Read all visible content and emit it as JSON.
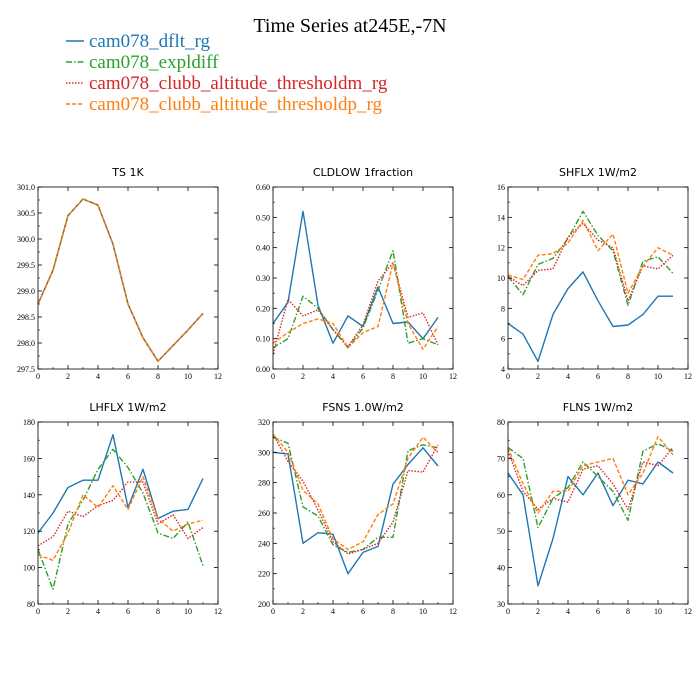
{
  "figure": {
    "title": "Time Series at245E,-7N",
    "legend": [
      {
        "label": "cam078_dflt_rg",
        "color": "#1f77b4",
        "dash": "solid"
      },
      {
        "label": "cam078_expldiff",
        "color": "#2ca02c",
        "dash": "dashdot"
      },
      {
        "label": "cam078_clubb_altitude_thresholdm_rg",
        "color": "#d62728",
        "dash": "dot"
      },
      {
        "label": "cam078_clubb_altitude_thresholdp_rg",
        "color": "#ff7f0e",
        "dash": "dash"
      }
    ]
  },
  "chart_data": [
    {
      "type": "line",
      "title": "TS   1K",
      "x": [
        0,
        1,
        2,
        3,
        4,
        5,
        6,
        7,
        8,
        9,
        10,
        11
      ],
      "xlim": [
        0,
        12
      ],
      "xticks": [
        0,
        2,
        4,
        6,
        8,
        10,
        12
      ],
      "ylim": [
        297.5,
        301.0
      ],
      "yticks": [
        297.5,
        298.0,
        298.5,
        299.0,
        299.5,
        300.0,
        300.5,
        301.0
      ],
      "ytick_labels": [
        "297.5",
        "298.0",
        "298.5",
        "299.0",
        "299.5",
        "300.0",
        "300.5",
        "301.0"
      ],
      "series": [
        {
          "name": "cam078_dflt_rg",
          "values": [
            298.75,
            299.4,
            300.45,
            300.77,
            300.65,
            299.9,
            298.75,
            298.1,
            297.65,
            297.95,
            298.25,
            298.57
          ]
        },
        {
          "name": "cam078_expldiff",
          "values": [
            298.75,
            299.4,
            300.45,
            300.77,
            300.65,
            299.9,
            298.75,
            298.1,
            297.65,
            297.95,
            298.25,
            298.57
          ]
        },
        {
          "name": "cam078_clubb_altitude_thresholdm_rg",
          "values": [
            298.75,
            299.4,
            300.45,
            300.77,
            300.65,
            299.9,
            298.75,
            298.1,
            297.65,
            297.95,
            298.25,
            298.57
          ]
        },
        {
          "name": "cam078_clubb_altitude_thresholdp_rg",
          "values": [
            298.75,
            299.4,
            300.45,
            300.77,
            300.65,
            299.9,
            298.75,
            298.1,
            297.65,
            297.95,
            298.25,
            298.57
          ]
        }
      ]
    },
    {
      "type": "line",
      "title": "CLDLOW   1fraction",
      "x": [
        0,
        1,
        2,
        3,
        4,
        5,
        6,
        7,
        8,
        9,
        10,
        11
      ],
      "xlim": [
        0,
        12
      ],
      "xticks": [
        0,
        2,
        4,
        6,
        8,
        10,
        12
      ],
      "ylim": [
        0.0,
        0.6
      ],
      "yticks": [
        0.0,
        0.1,
        0.2,
        0.3,
        0.4,
        0.5,
        0.6
      ],
      "ytick_labels": [
        "0.00",
        "0.10",
        "0.20",
        "0.30",
        "0.40",
        "0.50",
        "0.60"
      ],
      "series": [
        {
          "name": "cam078_dflt_rg",
          "values": [
            0.15,
            0.22,
            0.52,
            0.21,
            0.085,
            0.175,
            0.14,
            0.27,
            0.15,
            0.155,
            0.1,
            0.17
          ]
        },
        {
          "name": "cam078_expldiff",
          "values": [
            0.07,
            0.1,
            0.24,
            0.2,
            0.13,
            0.07,
            0.135,
            0.26,
            0.39,
            0.085,
            0.1,
            0.08
          ]
        },
        {
          "name": "cam078_clubb_altitude_thresholdm_rg",
          "values": [
            0.05,
            0.23,
            0.175,
            0.195,
            0.13,
            0.075,
            0.145,
            0.29,
            0.35,
            0.17,
            0.185,
            0.08
          ]
        },
        {
          "name": "cam078_clubb_altitude_thresholdp_rg",
          "values": [
            0.085,
            0.12,
            0.15,
            0.165,
            0.15,
            0.07,
            0.12,
            0.14,
            0.35,
            0.15,
            0.065,
            0.14
          ]
        }
      ]
    },
    {
      "type": "line",
      "title": "SHFLX   1W/m2",
      "x": [
        0,
        1,
        2,
        3,
        4,
        5,
        6,
        7,
        8,
        9,
        10,
        11
      ],
      "xlim": [
        0,
        12
      ],
      "xticks": [
        0,
        2,
        4,
        6,
        8,
        10,
        12
      ],
      "ylim": [
        4,
        16
      ],
      "yticks": [
        4,
        6,
        8,
        10,
        12,
        14,
        16
      ],
      "ytick_labels": [
        "4",
        "6",
        "8",
        "10",
        "12",
        "14",
        "16"
      ],
      "series": [
        {
          "name": "cam078_dflt_rg",
          "values": [
            7.0,
            6.3,
            4.5,
            7.6,
            9.3,
            10.4,
            8.5,
            6.8,
            6.9,
            7.6,
            8.8,
            8.8
          ]
        },
        {
          "name": "cam078_expldiff",
          "values": [
            10.1,
            8.9,
            10.9,
            11.3,
            12.6,
            14.4,
            12.8,
            11.8,
            8.2,
            11.1,
            11.4,
            10.3
          ]
        },
        {
          "name": "cam078_clubb_altitude_thresholdm_rg",
          "values": [
            10.1,
            9.5,
            10.5,
            10.6,
            12.7,
            13.6,
            12.5,
            12.0,
            8.5,
            10.8,
            10.6,
            11.5
          ]
        },
        {
          "name": "cam078_clubb_altitude_thresholdp_rg",
          "values": [
            10.2,
            9.9,
            11.5,
            11.6,
            12.3,
            13.8,
            11.8,
            12.9,
            9.0,
            10.8,
            12.0,
            11.5
          ]
        }
      ]
    },
    {
      "type": "line",
      "title": "LHFLX   1W/m2",
      "x": [
        0,
        1,
        2,
        3,
        4,
        5,
        6,
        7,
        8,
        9,
        10,
        11
      ],
      "xlim": [
        0,
        12
      ],
      "xticks": [
        0,
        2,
        4,
        6,
        8,
        10,
        12
      ],
      "ylim": [
        80,
        180
      ],
      "yticks": [
        80,
        100,
        120,
        140,
        160,
        180
      ],
      "ytick_labels": [
        "80",
        "100",
        "120",
        "140",
        "160",
        "180"
      ],
      "series": [
        {
          "name": "cam078_dflt_rg",
          "values": [
            119,
            130,
            144,
            148,
            148,
            173,
            133,
            154,
            127,
            131,
            132,
            149
          ]
        },
        {
          "name": "cam078_expldiff",
          "values": [
            110,
            88,
            124,
            137,
            154,
            165,
            155,
            141,
            119,
            116,
            125,
            101
          ]
        },
        {
          "name": "cam078_clubb_altitude_thresholdm_rg",
          "values": [
            112,
            117,
            131,
            128,
            134,
            137,
            147,
            147,
            124,
            129,
            116,
            122
          ]
        },
        {
          "name": "cam078_clubb_altitude_thresholdp_rg",
          "values": [
            107,
            104,
            119,
            140,
            133,
            145,
            132,
            150,
            127,
            120,
            124,
            126
          ]
        }
      ]
    },
    {
      "type": "line",
      "title": "FSNS   1.0W/m2",
      "x": [
        0,
        1,
        2,
        3,
        4,
        5,
        6,
        7,
        8,
        9,
        10,
        11
      ],
      "xlim": [
        0,
        12
      ],
      "xticks": [
        0,
        2,
        4,
        6,
        8,
        10,
        12
      ],
      "ylim": [
        200,
        320
      ],
      "yticks": [
        200,
        220,
        240,
        260,
        280,
        300,
        320
      ],
      "ytick_labels": [
        "200",
        "220",
        "240",
        "260",
        "280",
        "300",
        "320"
      ],
      "series": [
        {
          "name": "cam078_dflt_rg",
          "values": [
            300,
            299,
            240,
            247,
            246,
            220,
            234,
            238,
            279,
            292,
            303,
            291
          ]
        },
        {
          "name": "cam078_expldiff",
          "values": [
            310,
            306,
            264,
            258,
            239,
            234,
            236,
            244,
            244,
            301,
            305,
            303
          ]
        },
        {
          "name": "cam078_clubb_altitude_thresholdm_rg",
          "values": [
            312,
            294,
            281,
            262,
            241,
            233,
            236,
            240,
            254,
            288,
            287,
            305
          ]
        },
        {
          "name": "cam078_clubb_altitude_thresholdp_rg",
          "values": [
            312,
            300,
            275,
            266,
            243,
            236,
            241,
            259,
            266,
            296,
            310,
            300
          ]
        }
      ]
    },
    {
      "type": "line",
      "title": "FLNS   1W/m2",
      "x": [
        0,
        1,
        2,
        3,
        4,
        5,
        6,
        7,
        8,
        9,
        10,
        11
      ],
      "xlim": [
        0,
        12
      ],
      "xticks": [
        0,
        2,
        4,
        6,
        8,
        10,
        12
      ],
      "ylim": [
        30,
        80
      ],
      "yticks": [
        30,
        40,
        50,
        60,
        70,
        80
      ],
      "ytick_labels": [
        "30",
        "40",
        "50",
        "60",
        "70",
        "80"
      ],
      "series": [
        {
          "name": "cam078_dflt_rg",
          "values": [
            66,
            60,
            35,
            48,
            65,
            60,
            66,
            57,
            64,
            63,
            69,
            66
          ]
        },
        {
          "name": "cam078_expldiff",
          "values": [
            73,
            70,
            51,
            59,
            62,
            69,
            65,
            61,
            53,
            72,
            74,
            72
          ]
        },
        {
          "name": "cam078_clubb_altitude_thresholdm_rg",
          "values": [
            72,
            61,
            56,
            59,
            58,
            67,
            68,
            63,
            56,
            69,
            68,
            73
          ]
        },
        {
          "name": "cam078_clubb_altitude_thresholdp_rg",
          "values": [
            73,
            63,
            55,
            61,
            61,
            68,
            69,
            70,
            60,
            66,
            76,
            71
          ]
        }
      ]
    }
  ]
}
